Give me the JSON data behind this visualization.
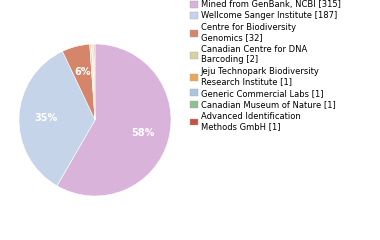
{
  "labels": [
    "Mined from GenBank, NCBI [315]",
    "Wellcome Sanger Institute [187]",
    "Centre for Biodiversity\nGenomics [32]",
    "Canadian Centre for DNA\nBarcoding [2]",
    "Jeju Technopark Biodiversity\nResearch Institute [1]",
    "Generic Commercial Labs [1]",
    "Canadian Museum of Nature [1]",
    "Advanced Identification\nMethods GmbH [1]"
  ],
  "values": [
    315,
    187,
    32,
    2,
    1,
    1,
    1,
    1
  ],
  "colors": [
    "#d9b3d9",
    "#c5d4e8",
    "#d4856a",
    "#d4d4a0",
    "#e8a857",
    "#aac5de",
    "#90c090",
    "#c85040"
  ],
  "figsize": [
    3.8,
    2.4
  ],
  "dpi": 100,
  "legend_fontsize": 6.0,
  "pct_fontsize": 7,
  "startangle": 90
}
